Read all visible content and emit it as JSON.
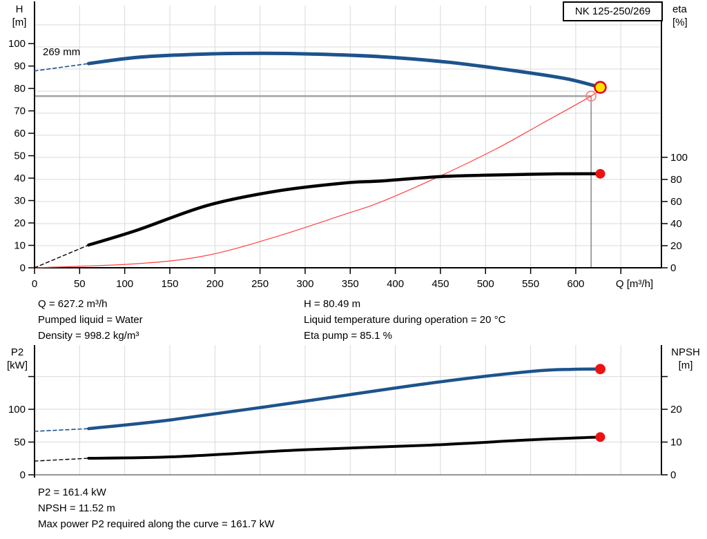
{
  "title_box": "NK 125-250/269",
  "labels": {
    "h_axis": [
      "H",
      "[m]"
    ],
    "eta_axis": [
      "eta",
      "[%]"
    ],
    "p2_axis": [
      "P2",
      "[kW]"
    ],
    "npsh_axis": [
      "NPSH",
      "[m]"
    ],
    "impeller": "269 mm",
    "q_axis": "Q [m³/h]"
  },
  "info": {
    "top_left": [
      "Q = 627.2 m³/h",
      "Pumped liquid = Water",
      "Density = 998.2 kg/m³"
    ],
    "top_right": [
      "H = 80.49 m",
      "Liquid temperature during operation = 20 °C",
      "Eta pump = 85.1 %"
    ],
    "bottom": [
      "P2 = 161.4 kW",
      "NPSH = 11.52 m",
      "Max power P2 required along the curve = 161.7 kW"
    ]
  },
  "colors": {
    "curve_blue": "#1d538c",
    "curve_black": "#000000",
    "system_red": "#ff4040",
    "marker_red": "#ee1111",
    "duty_yellow": "#ffe400",
    "duty_ring": "#e30613",
    "grid": "#d9d9d9",
    "crosshair_h": "#a3a3a3",
    "crosshair_v": "#4a4a4a",
    "axis": "#000000"
  },
  "chart_data": [
    {
      "type": "line",
      "id": "qh-chart",
      "xlabel": "Q [m³/h]",
      "ylabel_left": "H [m]",
      "ylabel_right": "eta [%]",
      "xlim": [
        0,
        695
      ],
      "ylim_left": [
        0,
        117
      ],
      "ylim_right": [
        0,
        237.5
      ],
      "grid_x": [
        50,
        100,
        150,
        200,
        250,
        300,
        350,
        400,
        450,
        500,
        550,
        600,
        650
      ],
      "grid_y_axis": "right",
      "grid_y": [
        20,
        40,
        60,
        80,
        100,
        120,
        140,
        160,
        180,
        200,
        220
      ],
      "ticks_x": {
        "values": [
          0,
          50,
          100,
          150,
          200,
          250,
          300,
          350,
          400,
          450,
          500,
          550,
          600,
          650
        ],
        "labels": [
          "0",
          "50",
          "100",
          "150",
          "200",
          "250",
          "300",
          "350",
          "400",
          "450",
          "500",
          "550",
          "600",
          ""
        ]
      },
      "ticks_left": {
        "values": [
          0,
          10,
          20,
          30,
          40,
          50,
          60,
          70,
          80,
          90,
          100
        ],
        "labels": [
          "0",
          "10",
          "20",
          "30",
          "40",
          "50",
          "60",
          "70",
          "80",
          "90",
          "100"
        ]
      },
      "ticks_right": {
        "values": [
          0,
          20,
          40,
          60,
          80,
          100
        ],
        "labels": [
          "0",
          "20",
          "40",
          "60",
          "80",
          "100"
        ]
      },
      "crosshair": {
        "q": 617,
        "h": 76.6
      },
      "series": [
        {
          "name": "system-curve",
          "axis": "left",
          "color": "#ff4040",
          "width": 1.2,
          "points": [
            [
              0,
              0
            ],
            [
              115,
              1.85
            ],
            [
              191,
              5.5
            ],
            [
              268,
              13.9
            ],
            [
              345,
              24
            ],
            [
              383,
              29.2
            ],
            [
              448,
              40.6
            ],
            [
              513,
              53.3
            ],
            [
              561,
              64
            ],
            [
              617,
              76.6
            ],
            [
              627.2,
              80
            ]
          ]
        },
        {
          "name": "head-curve-extrapolated",
          "axis": "left",
          "color": "#1d538c",
          "width": 1.6,
          "dash": "5 4",
          "points": [
            [
              0,
              87.8
            ],
            [
              60,
              91.1
            ]
          ]
        },
        {
          "name": "head-curve",
          "axis": "left",
          "color": "#1d538c",
          "width": 5,
          "points": [
            [
              60,
              91.1
            ],
            [
              115,
              93.9
            ],
            [
              191,
              95.4
            ],
            [
              253,
              95.7
            ],
            [
              306,
              95.4
            ],
            [
              383,
              94.2
            ],
            [
              459,
              91.7
            ],
            [
              536,
              87.7
            ],
            [
              590,
              84.3
            ],
            [
              627.2,
              80.49
            ]
          ]
        },
        {
          "name": "eta-curve-extrapolated",
          "axis": "right",
          "color": "#000000",
          "width": 1.4,
          "dash": "5 4",
          "points": [
            [
              0,
              0
            ],
            [
              60,
              20.6
            ]
          ]
        },
        {
          "name": "eta-curve",
          "axis": "right",
          "color": "#000000",
          "width": 4.5,
          "points": [
            [
              60,
              20.6
            ],
            [
              115,
              34.4
            ],
            [
              191,
              56.3
            ],
            [
              268,
              69.4
            ],
            [
              345,
              76.9
            ],
            [
              383,
              78.5
            ],
            [
              448,
              82.5
            ],
            [
              498,
              83.8
            ],
            [
              574,
              85
            ],
            [
              627.2,
              85.1
            ]
          ]
        }
      ],
      "markers": [
        {
          "name": "duty-point-requested",
          "axis": "left",
          "q": 617,
          "v": 76.6,
          "r": 7,
          "fill": "none",
          "stroke": "#ff7a7a",
          "sw": 1.6,
          "interactable": true
        },
        {
          "name": "duty-point",
          "axis": "left",
          "q": 627.2,
          "v": 80.49,
          "r": 8,
          "fill": "#ffe400",
          "stroke": "#e30613",
          "sw": 2.6,
          "interactable": true
        },
        {
          "name": "eta-duty-point",
          "axis": "right",
          "q": 627.2,
          "v": 85.1,
          "r": 7,
          "fill": "#ee1111",
          "stroke": "none",
          "sw": 0,
          "interactable": false
        }
      ]
    },
    {
      "type": "line",
      "id": "p2-npsh-chart",
      "xlabel": "",
      "ylabel_left": "P2 [kW]",
      "ylabel_right": "NPSH [m]",
      "xlim": [
        0,
        695
      ],
      "ylim_left": [
        0,
        198
      ],
      "ylim_right": [
        0,
        39.6
      ],
      "grid_x": [
        50,
        100,
        150,
        200,
        250,
        300,
        350,
        400,
        450,
        500,
        550,
        600,
        650
      ],
      "grid_y_axis": "left",
      "grid_y": [
        50,
        100,
        150
      ],
      "ticks_x": {
        "values": [],
        "labels": []
      },
      "ticks_left": {
        "values": [
          0,
          50,
          100,
          150
        ],
        "labels": [
          "0",
          "50",
          "100",
          ""
        ]
      },
      "ticks_right": {
        "values": [
          0,
          10,
          20,
          30
        ],
        "labels": [
          "0",
          "10",
          "20",
          ""
        ]
      },
      "series": [
        {
          "name": "p2-curve-extrapolated",
          "axis": "left",
          "color": "#1d538c",
          "width": 1.6,
          "dash": "5 4",
          "points": [
            [
              0,
              66.3
            ],
            [
              60,
              70.5
            ]
          ]
        },
        {
          "name": "p2-curve",
          "axis": "left",
          "color": "#1d538c",
          "width": 4.5,
          "points": [
            [
              60,
              70.5
            ],
            [
              153,
              84.2
            ],
            [
              296,
              111.6
            ],
            [
              439,
              140
            ],
            [
              551,
              157.9
            ],
            [
              597,
              161
            ],
            [
              627.2,
              161.4
            ]
          ]
        },
        {
          "name": "npsh-curve-extrapolated",
          "axis": "right",
          "color": "#000000",
          "width": 1.4,
          "dash": "5 4",
          "points": [
            [
              0,
              4.2
            ],
            [
              60,
              5.05
            ]
          ]
        },
        {
          "name": "npsh-curve",
          "axis": "right",
          "color": "#000000",
          "width": 4,
          "points": [
            [
              60,
              5.05
            ],
            [
              153,
              5.5
            ],
            [
              296,
              7.6
            ],
            [
              439,
              9.05
            ],
            [
              551,
              10.7
            ],
            [
              627.2,
              11.52
            ]
          ]
        }
      ],
      "markers": [
        {
          "name": "p2-duty-point",
          "axis": "left",
          "q": 627.2,
          "v": 161.4,
          "r": 7.5,
          "fill": "#ee1111",
          "stroke": "none",
          "sw": 0,
          "interactable": false
        },
        {
          "name": "npsh-duty-point",
          "axis": "right",
          "q": 627.2,
          "v": 11.52,
          "r": 7,
          "fill": "#ee1111",
          "stroke": "none",
          "sw": 0,
          "interactable": false
        }
      ]
    }
  ]
}
